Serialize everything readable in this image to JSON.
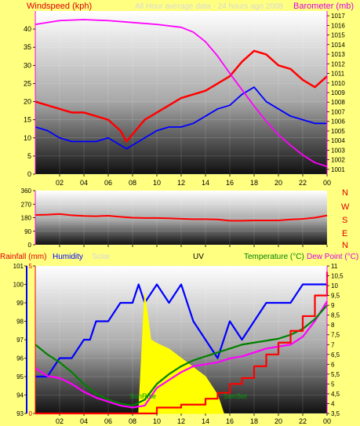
{
  "header": {
    "windspeed_label": "Windspeed (kph)",
    "barometer_label": "Barometer (mb)",
    "faint_title": "All Hour average data - 24 hours ago 2008",
    "colors": {
      "wind": "#ff0000",
      "gust": "#0000ff",
      "baro": "#ff00ff",
      "faint": "#d8d8d8",
      "axis": "#ff00ff"
    }
  },
  "direction": {
    "letters": [
      "N",
      "W",
      "S",
      "E",
      "N"
    ]
  },
  "lower_header": {
    "rainfall_label": "Rainfall (mm)",
    "humidity_label": "Humidity",
    "solar_label": "Solar",
    "uv_label": "UV",
    "temperature_label": "Temperature (°C)",
    "dewpoint_label": "Dew Point (°C)"
  },
  "annotations": {
    "sunrise": "SunRise",
    "sunset": "SunSet"
  },
  "chart_data": [
    {
      "type": "line",
      "title": "",
      "xlabel": "",
      "ylabel": "Windspeed (kph)",
      "y2label": "Barometer (mb)",
      "x_ticks": [
        "02",
        "04",
        "06",
        "08",
        "10",
        "12",
        "14",
        "16",
        "18",
        "20",
        "22",
        "00"
      ],
      "x_range": [
        0,
        24
      ],
      "ylim": [
        0,
        45
      ],
      "y_ticks": [
        0,
        5,
        10,
        15,
        20,
        25,
        30,
        35,
        40
      ],
      "y2lim": [
        1000.5,
        1017.5
      ],
      "y2_ticks": [
        1001,
        1002,
        1003,
        1004,
        1005,
        1006,
        1007,
        1008,
        1009,
        1010,
        1011,
        1012,
        1013,
        1014,
        1015,
        1016,
        1017
      ],
      "series": [
        {
          "name": "Windspeed",
          "axis": "left",
          "color": "#ff0000",
          "x": [
            0,
            1,
            2,
            3,
            4,
            5,
            6,
            7,
            7.5,
            8,
            9,
            10,
            11,
            12,
            13,
            14,
            15,
            16,
            17,
            18,
            19,
            20,
            21,
            22,
            23,
            24
          ],
          "y": [
            20,
            19,
            18,
            17,
            17,
            16,
            15,
            12,
            9,
            11,
            15,
            17,
            19,
            21,
            22,
            23,
            25,
            27,
            31,
            34,
            33,
            30,
            29,
            26,
            24,
            27
          ]
        },
        {
          "axis": "left",
          "color": "#0000ff",
          "x": [
            0,
            1,
            2,
            3,
            4,
            5,
            6,
            7,
            7.5,
            8,
            9,
            10,
            11,
            12,
            13,
            14,
            15,
            16,
            17,
            18,
            19,
            20,
            21,
            22,
            23,
            24
          ],
          "y": [
            13,
            12,
            10,
            9,
            9,
            9,
            10,
            8,
            7,
            8,
            10,
            12,
            13,
            13,
            14,
            16,
            18,
            19,
            22,
            24,
            20,
            18,
            16,
            15,
            14,
            14
          ]
        },
        {
          "name": "Barometer",
          "axis": "right",
          "color": "#ff00ff",
          "x": [
            0,
            2,
            4,
            6,
            8,
            10,
            12,
            13,
            14,
            15,
            16,
            17,
            18,
            19,
            20,
            21,
            22,
            23,
            24
          ],
          "y": [
            1016.1,
            1016.5,
            1016.6,
            1016.5,
            1016.3,
            1016.1,
            1015.8,
            1015.3,
            1014.3,
            1012.8,
            1011.0,
            1009.3,
            1007.6,
            1006.0,
            1004.6,
            1003.5,
            1002.5,
            1001.7,
            1001.3
          ]
        }
      ]
    },
    {
      "type": "line",
      "title": "",
      "ylabel": "",
      "x_ticks": [
        "02",
        "04",
        "06",
        "08",
        "10",
        "12",
        "14",
        "16",
        "18",
        "20",
        "22",
        "00"
      ],
      "x_range": [
        0,
        24
      ],
      "ylim": [
        0,
        360
      ],
      "y_ticks": [
        0,
        90,
        180,
        270,
        360
      ],
      "series": [
        {
          "name": "Wind Direction",
          "color": "#ff0000",
          "x": [
            0,
            1,
            2,
            3,
            4,
            5,
            6,
            7,
            8,
            9,
            10,
            11,
            12,
            13,
            14,
            15,
            16,
            17,
            18,
            19,
            20,
            21,
            22,
            23,
            24
          ],
          "y": [
            198,
            200,
            205,
            196,
            192,
            190,
            193,
            186,
            180,
            178,
            178,
            176,
            173,
            170,
            170,
            168,
            160,
            160,
            162,
            162,
            162,
            168,
            172,
            180,
            195
          ]
        }
      ]
    },
    {
      "type": "line",
      "title": "",
      "x_ticks": [
        "02",
        "04",
        "06",
        "08",
        "10",
        "12",
        "14",
        "16",
        "18",
        "20",
        "22",
        "00"
      ],
      "x_range": [
        0,
        24
      ],
      "humidity_axis": {
        "ylim": [
          93,
          101
        ],
        "ticks": [
          93,
          94,
          95,
          96,
          97,
          98,
          99,
          100,
          101
        ],
        "color": "#0000ff"
      },
      "rain_axis": {
        "ylim": [
          0,
          5
        ],
        "ticks": [
          0,
          5
        ],
        "color": "#ff0000"
      },
      "temp_axis": {
        "ylim": [
          3.5,
          11
        ],
        "ticks": [
          3.5,
          4,
          4.5,
          5,
          5.5,
          6,
          6.5,
          7,
          7.5,
          8,
          8.5,
          9,
          9.5,
          10,
          10.5,
          11
        ],
        "color": "#ff00ff"
      },
      "series": [
        {
          "name": "Humidity",
          "axis": "humidity",
          "color": "#0000ff",
          "x": [
            0,
            0.5,
            1,
            2,
            3,
            4,
            4.5,
            5,
            6,
            7,
            8,
            8.5,
            9,
            10,
            11,
            12,
            13,
            14,
            15,
            16,
            17,
            18,
            19,
            20,
            21,
            22,
            23,
            24
          ],
          "y": [
            95,
            95,
            95,
            96,
            96,
            97,
            97,
            98,
            98,
            99,
            99,
            100,
            99,
            100,
            99,
            100,
            98,
            97,
            96,
            98,
            97,
            98,
            99,
            99,
            99,
            100,
            100,
            100
          ]
        },
        {
          "name": "Solar",
          "axis": "humidity",
          "color": "#ffff00",
          "fill": true,
          "x": [
            8.5,
            9,
            9.5,
            10,
            11,
            12,
            13,
            14,
            15,
            15.5
          ],
          "y": [
            93,
            99.5,
            97,
            96.8,
            96.5,
            96,
            95.5,
            95,
            94,
            93
          ]
        },
        {
          "name": "Temperature",
          "axis": "temp",
          "color": "#ff00ff",
          "x": [
            0,
            1,
            2,
            3,
            4,
            5,
            6,
            7,
            8,
            9,
            10,
            11,
            12,
            13,
            14,
            15,
            16,
            17,
            18,
            19,
            20,
            21,
            22,
            23,
            24
          ],
          "y": [
            5.8,
            5.4,
            5.3,
            5.0,
            4.6,
            4.3,
            4.1,
            3.9,
            3.8,
            3.9,
            4.8,
            5.2,
            5.6,
            5.9,
            6.0,
            6.1,
            6.3,
            6.4,
            6.6,
            6.8,
            6.9,
            7.0,
            7.4,
            8.2,
            9.2
          ]
        },
        {
          "name": "Dew Point",
          "axis": "temp",
          "color": "#008000",
          "x": [
            0,
            1,
            2,
            3,
            4,
            5,
            6,
            7,
            8,
            9,
            10,
            11,
            12,
            13,
            14,
            15,
            16,
            17,
            18,
            19,
            20,
            21,
            22,
            23,
            24
          ],
          "y": [
            7.0,
            6.5,
            6.1,
            5.6,
            5.0,
            4.5,
            4.2,
            4.0,
            3.9,
            4.2,
            5.0,
            5.5,
            5.9,
            6.2,
            6.4,
            6.6,
            6.8,
            7.0,
            7.1,
            7.2,
            7.3,
            7.5,
            7.8,
            8.3,
            9.0
          ]
        },
        {
          "name": "Rainfall",
          "axis": "rain",
          "color": "#ff0000",
          "step": true,
          "x": [
            0,
            9,
            10,
            12,
            13,
            14,
            15,
            16,
            17,
            18,
            19,
            20,
            21,
            22,
            23,
            24
          ],
          "y": [
            0,
            0,
            0.2,
            0.3,
            0.3,
            0.5,
            0.7,
            1.0,
            1.2,
            1.6,
            2.0,
            2.4,
            2.8,
            3.3,
            4.0,
            4.8
          ]
        }
      ]
    }
  ]
}
